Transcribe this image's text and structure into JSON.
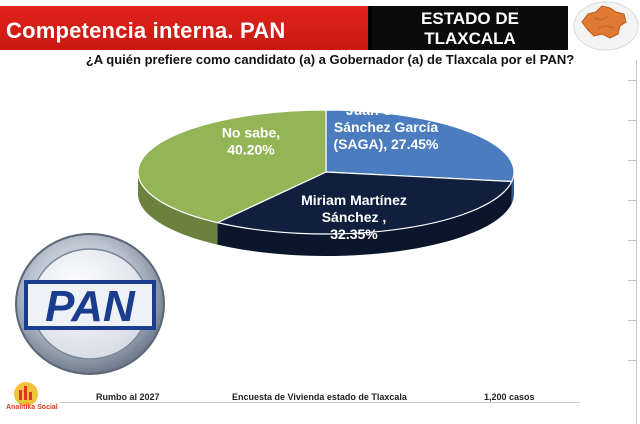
{
  "header": {
    "title": "Competencia interna. PAN",
    "state_line1": "ESTADO DE",
    "state_line2": "TLAXCALA"
  },
  "question": "¿A quién prefiere como candidato (a) a Gobernador (a) de Tlaxcala por el PAN?",
  "chart_data": {
    "type": "pie",
    "title": "",
    "slices": [
      {
        "label_lines": [
          "Juan Carlos",
          "Sánchez García",
          "(SAGA), 27.45%"
        ],
        "value": 27.45,
        "color": "#4a7cbf"
      },
      {
        "label_lines": [
          "Miriam Martínez",
          "Sánchez ,",
          "32.35%"
        ],
        "value": 32.35,
        "color": "#0f1f3d"
      },
      {
        "label_lines": [
          "No sabe,",
          "40.20%"
        ],
        "value": 40.2,
        "color": "#94b556"
      }
    ]
  },
  "logo": {
    "text": "PAN",
    "color": "#1a3d8f"
  },
  "footer": {
    "left": "Rumbo al 2027",
    "center": "Encuesta de Vivienda estado de Tlaxcala",
    "right": "1,200 casos",
    "brand": "Analitika Social"
  }
}
